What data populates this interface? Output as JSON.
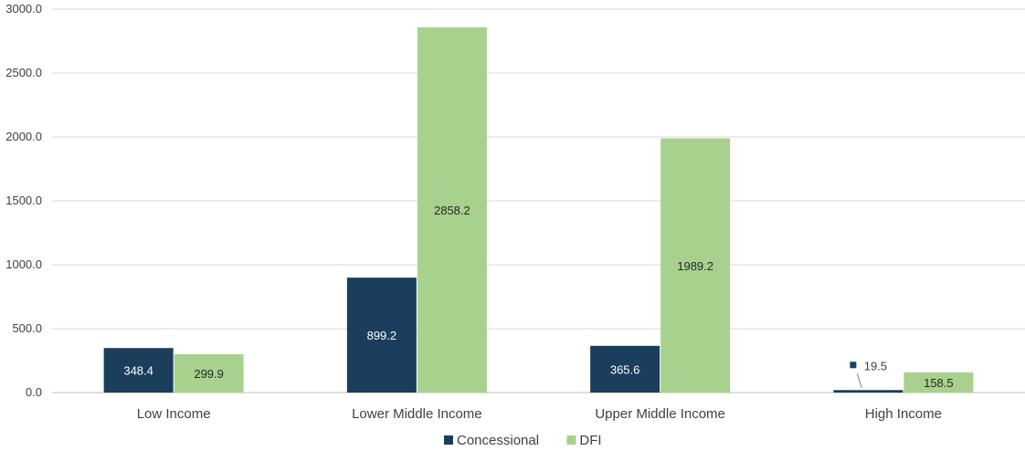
{
  "chart_data": {
    "type": "bar",
    "title": "",
    "xlabel": "",
    "ylabel": "",
    "ylim": [
      0,
      3000
    ],
    "yticks": [
      0,
      500,
      1000,
      1500,
      2000,
      2500,
      3000
    ],
    "ytick_labels": [
      "0.0",
      "500.0",
      "1000.0",
      "1500.0",
      "2000.0",
      "2500.0",
      "3000.0"
    ],
    "grid": true,
    "legend_position": "bottom",
    "categories": [
      "Low Income",
      "Lower Middle Income",
      "Upper Middle Income",
      "High Income"
    ],
    "series": [
      {
        "name": "Concessional",
        "color": "#1a3e5c",
        "values": [
          348.4,
          899.2,
          365.6,
          19.5
        ],
        "labels": [
          "348.4",
          "899.2",
          "365.6",
          "19.5"
        ]
      },
      {
        "name": "DFI",
        "color": "#a9d18e",
        "values": [
          299.9,
          2858.2,
          1989.2,
          158.5
        ],
        "labels": [
          "299.9",
          "2858.2",
          "1989.2",
          "158.5"
        ]
      }
    ]
  }
}
